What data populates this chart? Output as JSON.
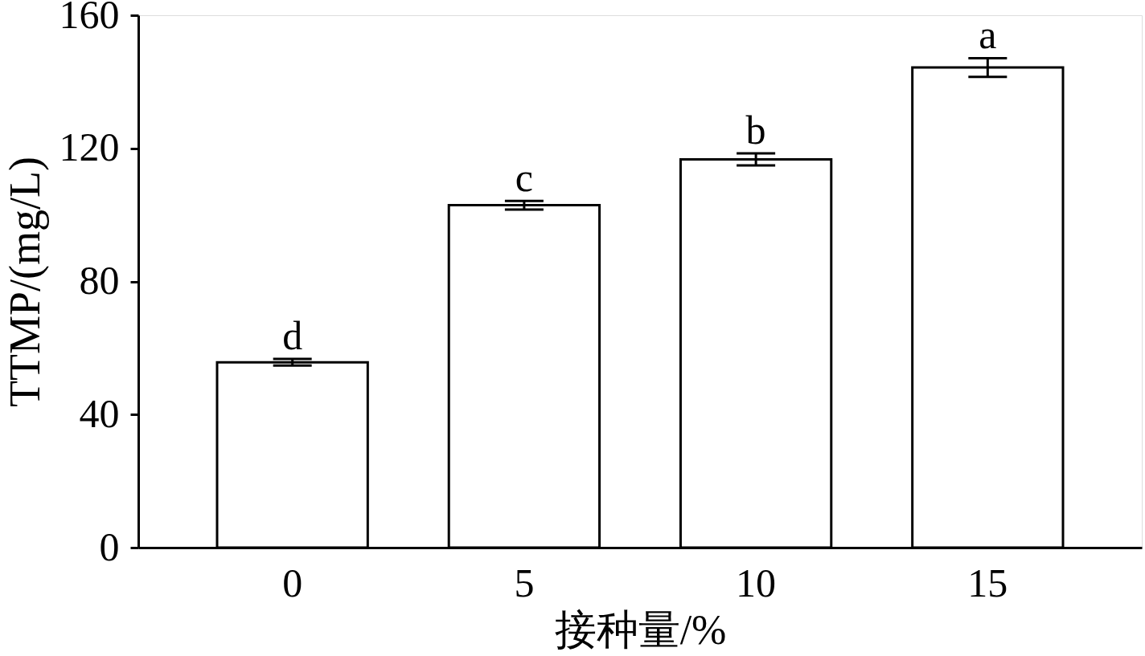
{
  "chart_data": {
    "type": "bar",
    "xlabel": "接种量/%",
    "ylabel": "TTMP/(mg/L)",
    "categories": [
      "0",
      "5",
      "10",
      "15"
    ],
    "values": [
      55.7,
      102.9,
      116.7,
      144.3
    ],
    "errors": [
      1.0,
      1.3,
      1.8,
      2.8
    ],
    "color": "#ffffff",
    "ylim": [
      0,
      160
    ],
    "yticks": [
      0,
      40,
      80,
      120,
      160
    ],
    "grid": false,
    "annotations": [
      "d",
      "c",
      "b",
      "a"
    ]
  }
}
